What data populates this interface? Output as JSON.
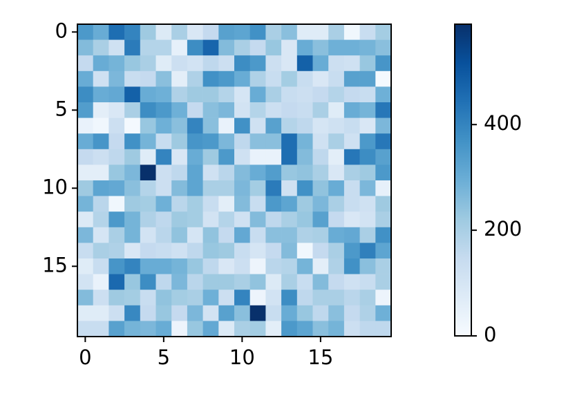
{
  "chart_data": {
    "type": "heatmap",
    "colormap": "Blues",
    "values": [
      [
        350,
        300,
        450,
        400,
        220,
        80,
        200,
        90,
        150,
        330,
        320,
        370,
        200,
        250,
        70,
        70,
        200,
        20,
        140,
        210
      ],
      [
        260,
        200,
        120,
        420,
        180,
        180,
        50,
        380,
        470,
        260,
        200,
        150,
        230,
        90,
        300,
        250,
        290,
        290,
        280,
        250
      ],
      [
        150,
        300,
        280,
        230,
        200,
        70,
        130,
        110,
        160,
        130,
        380,
        350,
        130,
        90,
        480,
        300,
        130,
        120,
        230,
        360
      ],
      [
        300,
        120,
        270,
        140,
        150,
        250,
        60,
        190,
        370,
        350,
        300,
        190,
        140,
        210,
        140,
        90,
        140,
        330,
        330,
        10
      ],
      [
        380,
        300,
        310,
        480,
        300,
        290,
        190,
        220,
        220,
        180,
        100,
        300,
        200,
        140,
        130,
        150,
        180,
        150,
        140,
        290
      ],
      [
        340,
        60,
        90,
        200,
        380,
        350,
        290,
        150,
        250,
        270,
        110,
        180,
        130,
        150,
        140,
        200,
        70,
        300,
        280,
        430
      ],
      [
        40,
        20,
        130,
        10,
        230,
        290,
        250,
        400,
        250,
        40,
        370,
        120,
        330,
        180,
        160,
        100,
        120,
        140,
        90,
        270
      ],
      [
        300,
        360,
        150,
        370,
        280,
        140,
        220,
        360,
        350,
        270,
        160,
        250,
        250,
        450,
        280,
        120,
        200,
        120,
        350,
        430
      ],
      [
        150,
        130,
        160,
        220,
        70,
        400,
        90,
        300,
        220,
        350,
        120,
        40,
        40,
        450,
        260,
        160,
        60,
        430,
        380,
        330
      ],
      [
        60,
        60,
        230,
        270,
        590,
        130,
        160,
        320,
        120,
        170,
        260,
        300,
        340,
        230,
        240,
        200,
        90,
        200,
        220,
        350
      ],
      [
        220,
        320,
        310,
        250,
        180,
        130,
        260,
        320,
        200,
        200,
        270,
        210,
        420,
        120,
        370,
        240,
        300,
        140,
        270,
        50
      ],
      [
        280,
        170,
        20,
        220,
        210,
        290,
        170,
        210,
        140,
        60,
        260,
        140,
        350,
        320,
        220,
        270,
        200,
        140,
        120,
        220
      ],
      [
        80,
        180,
        350,
        280,
        190,
        160,
        220,
        210,
        110,
        180,
        120,
        260,
        160,
        200,
        230,
        330,
        150,
        90,
        110,
        200
      ],
      [
        270,
        100,
        200,
        280,
        110,
        170,
        240,
        100,
        240,
        150,
        310,
        140,
        250,
        250,
        190,
        200,
        300,
        310,
        200,
        370
      ],
      [
        140,
        200,
        190,
        90,
        150,
        140,
        120,
        160,
        230,
        220,
        140,
        100,
        150,
        260,
        20,
        150,
        200,
        350,
        410,
        320
      ],
      [
        70,
        140,
        360,
        400,
        300,
        300,
        280,
        230,
        160,
        90,
        130,
        30,
        170,
        180,
        280,
        60,
        190,
        370,
        250,
        200
      ],
      [
        110,
        40,
        460,
        230,
        380,
        160,
        270,
        170,
        220,
        220,
        200,
        240,
        80,
        200,
        140,
        260,
        150,
        120,
        140,
        200
      ],
      [
        260,
        130,
        220,
        210,
        140,
        240,
        210,
        200,
        290,
        130,
        400,
        30,
        110,
        380,
        160,
        200,
        200,
        170,
        200,
        30
      ],
      [
        70,
        70,
        130,
        390,
        150,
        230,
        150,
        270,
        110,
        330,
        250,
        590,
        140,
        300,
        230,
        160,
        250,
        150,
        190,
        290
      ],
      [
        140,
        140,
        330,
        280,
        270,
        300,
        30,
        230,
        310,
        80,
        200,
        210,
        60,
        350,
        320,
        250,
        280,
        130,
        160,
        160
      ]
    ],
    "xlim": [
      -0.5,
      19.5
    ],
    "ylim": [
      19.5,
      -0.5
    ],
    "xticks": [
      0,
      5,
      10,
      15
    ],
    "yticks": [
      0,
      5,
      10,
      15
    ],
    "clim": [
      0,
      590
    ],
    "cticks": [
      0,
      200,
      400
    ]
  }
}
